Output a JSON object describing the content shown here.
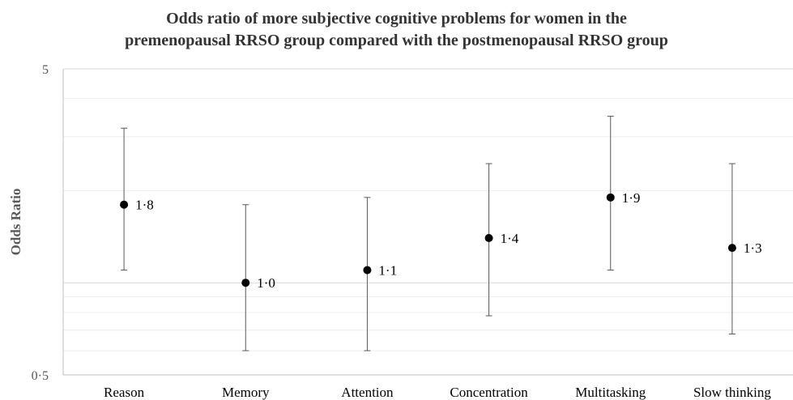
{
  "chart_data": {
    "type": "scatter",
    "title_lines": [
      "Odds ratio of more subjective cognitive problems for women in the",
      "premenopausal RRSO group compared with the postmenopausal RRSO group"
    ],
    "xlabel": "",
    "ylabel": "Odds Ratio",
    "y_scale": "log",
    "ylim": [
      0.5,
      5
    ],
    "y_tick_labels": [
      "5",
      "0·5"
    ],
    "grid": true,
    "categories": [
      "Reason",
      "Memory",
      "Attention",
      "Concentration",
      "Multitasking",
      "Slow thinking"
    ],
    "series": [
      {
        "values": [
          1.8,
          1.0,
          1.1,
          1.4,
          1.9,
          1.3
        ],
        "value_labels": [
          "1·8",
          "1·0",
          "1·1",
          "1·4",
          "1·9",
          "1·3"
        ],
        "ci_lower": [
          1.1,
          0.6,
          0.6,
          0.78,
          1.1,
          0.68
        ],
        "ci_upper": [
          3.2,
          1.8,
          1.9,
          2.45,
          3.5,
          2.45
        ]
      }
    ],
    "colors": {
      "points": "#000000",
      "error_bars": "#595959",
      "grid": "#d9d9d9",
      "title": "#333333"
    }
  }
}
